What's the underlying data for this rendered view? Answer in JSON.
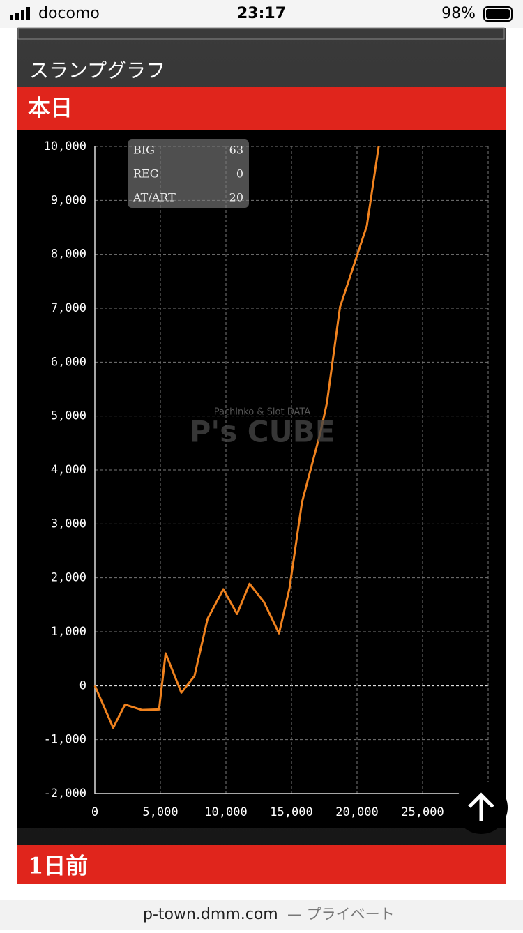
{
  "status_bar": {
    "carrier": "docomo",
    "time": "23:17",
    "battery": "98%"
  },
  "section_title": "スランプグラフ",
  "tabs": [
    "本日",
    "1日前"
  ],
  "chart_data": {
    "type": "line",
    "color": "#f0821e",
    "grid": true,
    "x": [
      0,
      1400,
      2300,
      3600,
      4900,
      5400,
      6600,
      7600,
      8600,
      9800,
      10850,
      11800,
      12900,
      14050,
      14850,
      15800,
      17200,
      17700,
      18700,
      20750,
      21650
    ],
    "values": [
      0,
      -780,
      -350,
      -450,
      -440,
      600,
      -130,
      180,
      1240,
      1790,
      1330,
      1890,
      1550,
      970,
      1810,
      3400,
      4690,
      5240,
      7020,
      8530,
      10000
    ],
    "xlim": [
      0,
      30000
    ],
    "ylim": [
      -2000,
      10000
    ],
    "xticks": [
      0,
      {
        "value": 5000,
        "label": "5,000"
      },
      {
        "value": 10000,
        "label": "10,000"
      },
      {
        "value": 15000,
        "label": "15,000"
      },
      {
        "value": 20000,
        "label": "20,000"
      },
      {
        "value": 25000,
        "label": "25,000"
      }
    ],
    "yticks": [
      {
        "value": -2000,
        "label": "-2,000"
      },
      {
        "value": -1000,
        "label": "-1,000"
      },
      0,
      {
        "value": 1000,
        "label": "1,000"
      },
      {
        "value": 2000,
        "label": "2,000"
      },
      {
        "value": 3000,
        "label": "3,000"
      },
      {
        "value": 4000,
        "label": "4,000"
      },
      {
        "value": 5000,
        "label": "5,000"
      },
      {
        "value": 6000,
        "label": "6,000"
      },
      {
        "value": 7000,
        "label": "7,000"
      },
      {
        "value": 8000,
        "label": "8,000"
      },
      {
        "value": 9000,
        "label": "9,000"
      },
      {
        "value": 10000,
        "label": "10,000"
      }
    ]
  },
  "stats": [
    {
      "label": "BIG",
      "value": 63
    },
    {
      "label": "REG",
      "value": 0
    },
    {
      "label": "AT/ART",
      "value": 20
    }
  ],
  "watermark": {
    "subtitle": "Pachinko & Slot DATA",
    "title": "P's CUBE"
  },
  "url_bar": {
    "domain": "p-town.dmm.com",
    "suffix": "— プライベート"
  }
}
